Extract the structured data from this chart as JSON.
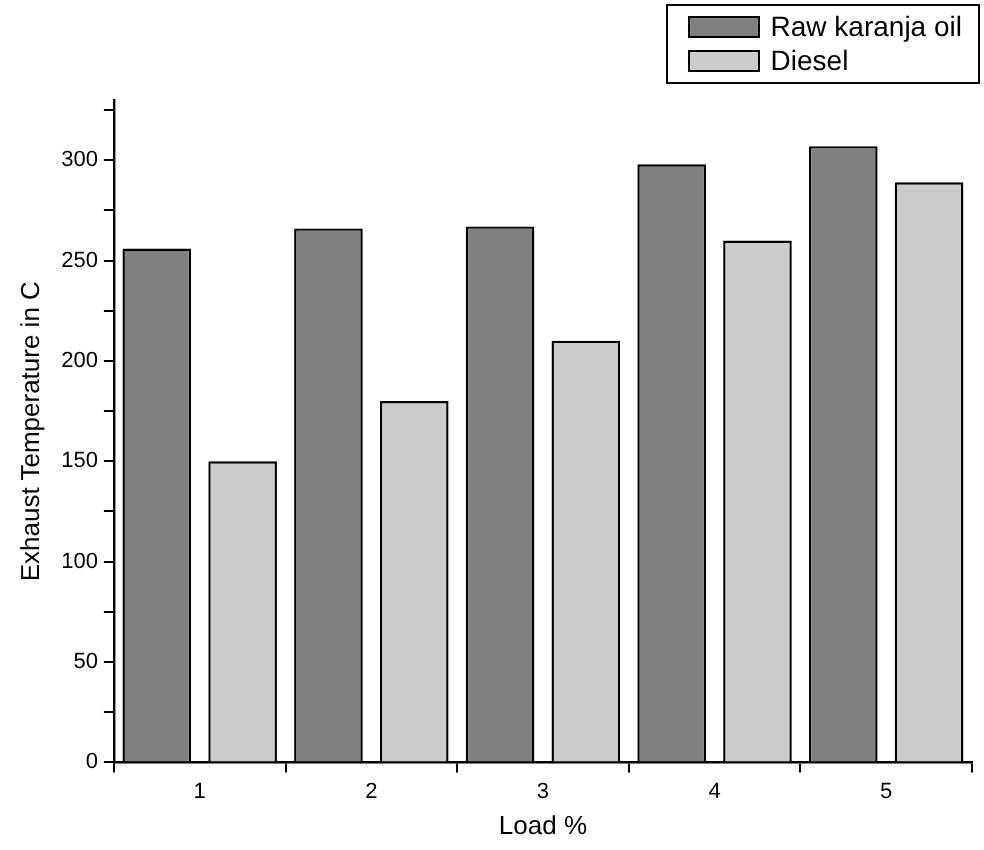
{
  "chart_data": {
    "type": "bar",
    "xlabel": "Load %",
    "ylabel": "Exhaust Temperature in C",
    "categories": [
      "1",
      "2",
      "3",
      "4",
      "5"
    ],
    "series": [
      {
        "name": "Raw karanja oil",
        "color": "#808080",
        "values": [
          256,
          266,
          267,
          298,
          307
        ]
      },
      {
        "name": "Diesel",
        "color": "#cccccc",
        "values": [
          150,
          180,
          210,
          260,
          289
        ]
      }
    ],
    "ylim": [
      0,
      330
    ],
    "yticks": [
      0,
      {
        "value": 25,
        "label": null
      },
      50,
      {
        "value": 75,
        "label": null
      },
      100,
      {
        "value": 125,
        "label": null
      },
      150,
      {
        "value": 175,
        "label": null
      },
      200,
      {
        "value": 225,
        "label": null
      },
      250,
      {
        "value": 275,
        "label": null
      },
      300,
      {
        "value": 325,
        "label": null
      }
    ],
    "grid": false,
    "legend": "top right"
  }
}
